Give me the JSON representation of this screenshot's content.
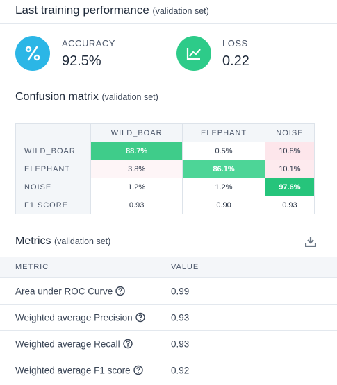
{
  "header": {
    "title": "Last training performance",
    "subtitle": "(validation set)"
  },
  "summary": [
    {
      "label": "ACCURACY",
      "value": "92.5%"
    },
    {
      "label": "LOSS",
      "value": "0.22"
    }
  ],
  "confusion": {
    "title": "Confusion matrix",
    "subtitle": "(validation set)",
    "columns": [
      "WILD_BOAR",
      "ELEPHANT",
      "NOISE"
    ],
    "rows": [
      {
        "label": "WILD_BOAR",
        "cells": [
          "88.7%",
          "0.5%",
          "10.8%"
        ]
      },
      {
        "label": "ELEPHANT",
        "cells": [
          "3.8%",
          "86.1%",
          "10.1%"
        ]
      },
      {
        "label": "NOISE",
        "cells": [
          "1.2%",
          "1.2%",
          "97.6%"
        ]
      },
      {
        "label": "F1 SCORE",
        "cells": [
          "0.93",
          "0.90",
          "0.93"
        ]
      }
    ]
  },
  "metrics": {
    "title": "Metrics",
    "subtitle": "(validation set)",
    "columns": [
      "METRIC",
      "VALUE"
    ],
    "rows": [
      [
        "Area under ROC Curve",
        "0.99"
      ],
      [
        "Weighted average Precision",
        "0.93"
      ],
      [
        "Weighted average Recall",
        "0.93"
      ],
      [
        "Weighted average F1 score",
        "0.92"
      ]
    ]
  }
}
